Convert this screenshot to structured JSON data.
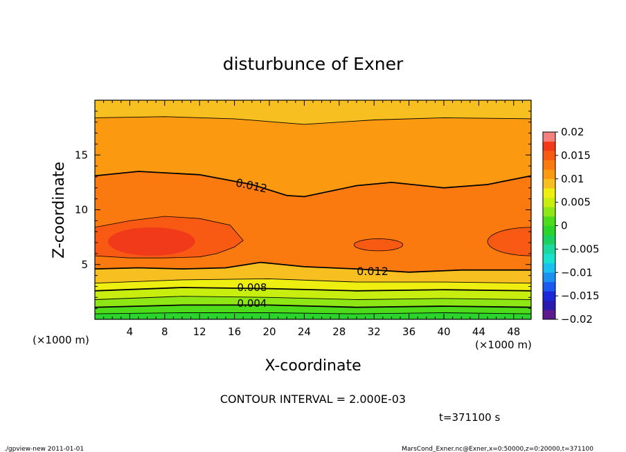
{
  "chart_data": {
    "type": "contour",
    "title": "disturbunce of Exner",
    "xlabel": "X-coordinate",
    "ylabel": "Z-coordinate",
    "x_unit": "(×1000 m)",
    "x_unit_right": "(×1000 m)",
    "xlim": [
      0,
      50
    ],
    "ylim": [
      0,
      20
    ],
    "xticks": [
      "4",
      "8",
      "12",
      "16",
      "20",
      "24",
      "28",
      "32",
      "36",
      "40",
      "44",
      "48"
    ],
    "yticks": [
      "5",
      "10",
      "15"
    ],
    "contour_interval": "CONTOUR INTERVAL = 2.000E-03",
    "time_label": "t=371100 s",
    "contour_labels": [
      "0.012",
      "0.012",
      "0.008",
      "0.004"
    ],
    "colorbar_ticks": [
      "0.02",
      "0.015",
      "0.01",
      "0.005",
      "0",
      "−0.005",
      "−0.01",
      "−0.015",
      "−0.02"
    ],
    "colorbar_range": [
      -0.02,
      0.02
    ],
    "colors": {
      "c_0000": "#2ad42a",
      "c_0002": "#4edc1a",
      "c_0004": "#8ee614",
      "c_0006": "#c8ee10",
      "c_0008": "#eeee10",
      "c_0010": "#f7c020",
      "c_0012": "#fb9a10",
      "c_0014": "#fb7a10",
      "c_0016": "#f85a14",
      "c_0018": "#f03a1a"
    }
  },
  "footer": {
    "left": "./gpview-new   2011-01-01",
    "right": "MarsCond_Exner.nc@Exner,x=0:50000,z=0:20000,t=371100"
  }
}
